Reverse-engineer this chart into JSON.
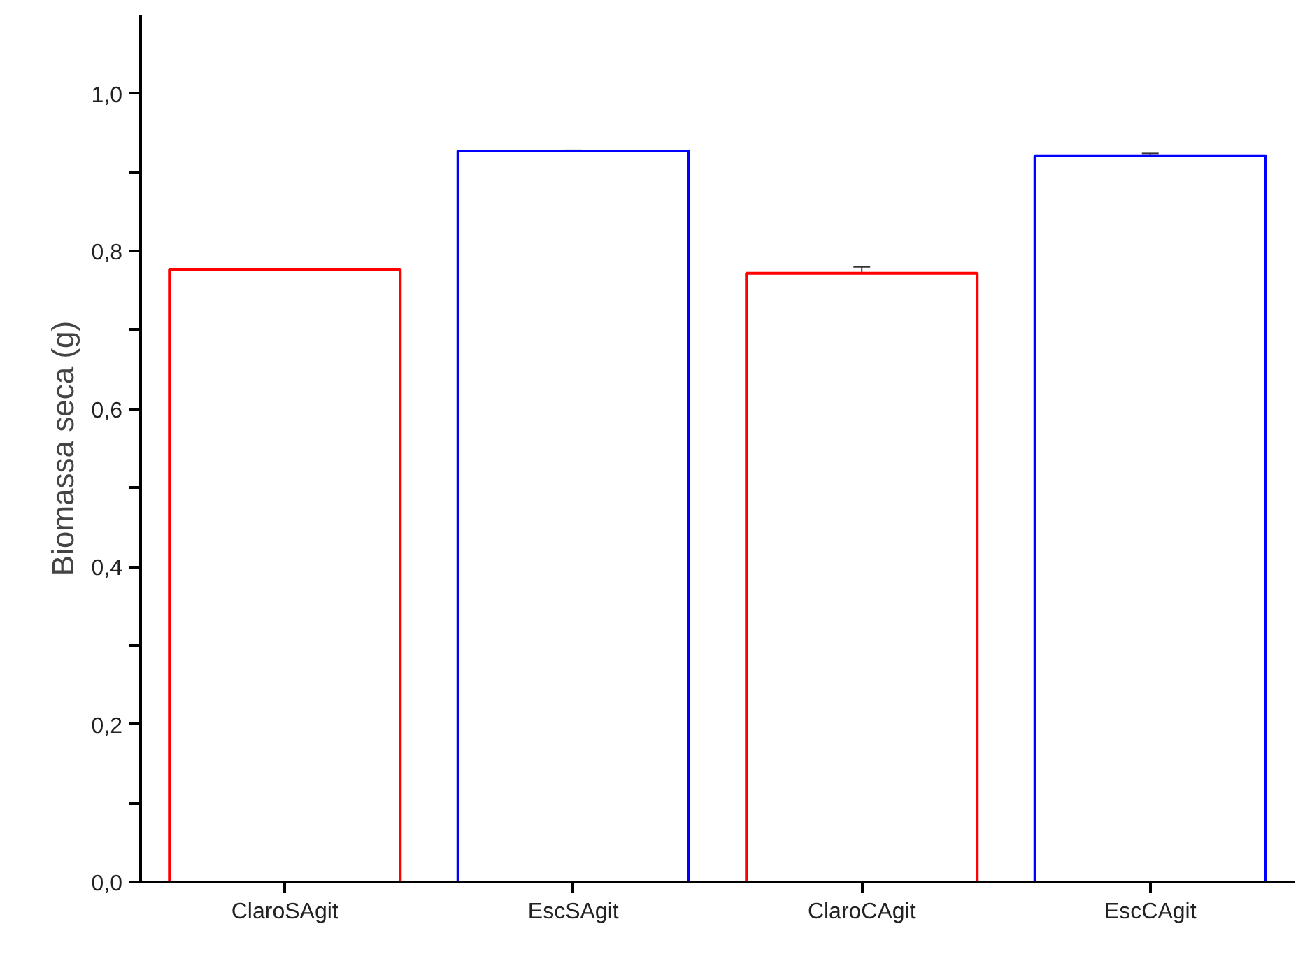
{
  "chart_data": {
    "type": "bar",
    "ylabel": "Biomassa seca (g)",
    "categories": [
      "ClaroSAgit",
      "EscSAgit",
      "ClaroCAgit",
      "EscCAgit"
    ],
    "values": [
      0.777,
      0.927,
      0.772,
      0.921
    ],
    "errors": [
      0.001,
      0.001,
      0.008,
      0.003
    ],
    "colors": [
      "#ff0000",
      "#0000ff",
      "#ff0000",
      "#0000ff"
    ],
    "ylim": [
      0,
      1.1
    ],
    "yticks": [
      {
        "value": 0,
        "label": "0,0"
      },
      {
        "value": 0.1,
        "label": null
      },
      {
        "value": 0.2,
        "label": "0,2"
      },
      {
        "value": 0.3,
        "label": null
      },
      {
        "value": 0.4,
        "label": "0,4"
      },
      {
        "value": 0.5,
        "label": null
      },
      {
        "value": 0.6,
        "label": "0,6"
      },
      {
        "value": 0.7,
        "label": null
      },
      {
        "value": 0.8,
        "label": "0,8"
      },
      {
        "value": 0.9,
        "label": null
      },
      {
        "value": 1.0,
        "label": "1,0"
      }
    ],
    "grid": false
  }
}
